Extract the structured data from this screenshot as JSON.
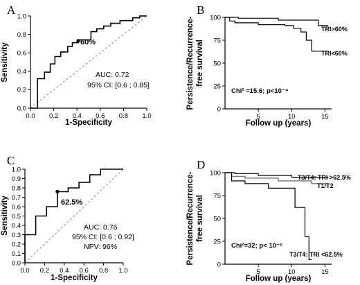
{
  "chart_data": [
    {
      "panel": "A",
      "type": "line",
      "xlabel": "1-Specificity",
      "ylabel": "Sensitivity",
      "xlim": [
        0,
        1
      ],
      "ylim": [
        0,
        1
      ],
      "xticks": [
        "0.0",
        "0.2",
        "0.4",
        "0.6",
        "0.8",
        "1.0"
      ],
      "yticks": [
        "0.0",
        "0.2",
        "0.4",
        "0.6",
        "0.8",
        "1.0"
      ],
      "series": [
        {
          "x": [
            0,
            0.06,
            0.06,
            0.12,
            0.12,
            0.17,
            0.17,
            0.21,
            0.21,
            0.26,
            0.26,
            0.32,
            0.32,
            0.36,
            0.36,
            0.41,
            0.41,
            0.52,
            0.52,
            0.57,
            0.57,
            0.63,
            0.63,
            0.69,
            0.69,
            0.77,
            0.77,
            0.88,
            0.88,
            0.94,
            0.94,
            1.0
          ],
          "y": [
            0,
            0,
            0.32,
            0.32,
            0.39,
            0.39,
            0.48,
            0.48,
            0.56,
            0.56,
            0.61,
            0.61,
            0.67,
            0.67,
            0.71,
            0.71,
            0.74,
            0.74,
            0.83,
            0.83,
            0.86,
            0.86,
            0.89,
            0.89,
            0.92,
            0.92,
            0.95,
            0.95,
            0.98,
            0.98,
            1.0,
            1.0
          ]
        }
      ],
      "reference_line": true,
      "cutoff_point": {
        "x": 0.41,
        "y": 0.73,
        "label": "60%"
      },
      "annotations": [
        "AUC: 0.72",
        "95% CI: [0.6 ; 0.85]"
      ]
    },
    {
      "panel": "B",
      "type": "line",
      "xlabel": "Follow up (years)",
      "ylabel": "Persistence/Recurrence-\nfree survival",
      "xlim": [
        0,
        16
      ],
      "ylim": [
        0,
        100
      ],
      "xticks": [
        "5",
        "10",
        "15"
      ],
      "yticks": [
        "0",
        "25",
        "50",
        "75",
        "100"
      ],
      "series": [
        {
          "name": "TRI>60%",
          "x": [
            0,
            2,
            2,
            8,
            8,
            14,
            14,
            15.5
          ],
          "y": [
            100,
            100,
            99,
            99,
            97,
            97,
            91,
            91
          ]
        },
        {
          "name": "TRI<60%",
          "x": [
            0,
            0.7,
            0.7,
            1.5,
            1.5,
            5,
            5,
            9,
            9,
            10.3,
            10.3,
            11.4,
            11.4,
            12.2,
            12.2,
            13,
            13,
            15.5
          ],
          "y": [
            100,
            100,
            96,
            96,
            94,
            94,
            92,
            92,
            91,
            91,
            88,
            88,
            84,
            84,
            75,
            75,
            63,
            63
          ]
        }
      ],
      "annotations": [
        "Chi² =15.6; p<10⁻⁴"
      ]
    },
    {
      "panel": "C",
      "type": "line",
      "xlabel": "1-Specificity",
      "ylabel": "Sensitivity",
      "xlim": [
        0,
        1
      ],
      "ylim": [
        0,
        1
      ],
      "xticks": [
        "0.0",
        "0.2",
        "0.4",
        "0.6",
        "0.8",
        "1.0"
      ],
      "yticks": [
        "0.0",
        "0.1",
        "0.2",
        "0.3",
        "0.4",
        "0.5",
        "0.6",
        "0.7",
        "0.8",
        "0.9",
        "1.0"
      ],
      "series": [
        {
          "x": [
            0,
            0.11,
            0.11,
            0.22,
            0.22,
            0.33,
            0.33,
            0.44,
            0.44,
            0.55,
            0.55,
            0.66,
            0.66,
            0.77,
            0.77,
            1.0
          ],
          "y": [
            0.3,
            0.3,
            0.5,
            0.5,
            0.6,
            0.6,
            0.76,
            0.76,
            0.8,
            0.8,
            0.86,
            0.86,
            0.94,
            0.94,
            1.0,
            1.0
          ]
        }
      ],
      "reference_line": true,
      "cutoff_point": {
        "x": 0.33,
        "y": 0.76,
        "label": "62.5%"
      },
      "annotations": [
        "AUC: 0.76",
        "95% CI: [0.6 ; 0.92]",
        "NPV: 96%"
      ]
    },
    {
      "panel": "D",
      "type": "line",
      "xlabel": "Follow up (years)",
      "ylabel": "Persistence/Recurrence-\nfree survival",
      "xlim": [
        0,
        16
      ],
      "ylim": [
        0,
        100
      ],
      "xticks": [
        "5",
        "10",
        "15"
      ],
      "yticks": [
        "0",
        "25",
        "50",
        "75",
        "100"
      ],
      "series": [
        {
          "name": "T3/T4: TRI >62.5%",
          "x": [
            0,
            1.5,
            1.5,
            5,
            5,
            10,
            10,
            15.5
          ],
          "y": [
            100,
            100,
            99,
            99,
            97,
            97,
            95,
            95
          ]
        },
        {
          "name": "T1/T2",
          "x": [
            0,
            1,
            1,
            3,
            3,
            8,
            8,
            13,
            13,
            15.5
          ],
          "y": [
            100,
            100,
            96,
            96,
            94,
            94,
            91,
            91,
            88,
            88
          ]
        },
        {
          "name": "T3/T4: TRI <62.5%",
          "x": [
            0,
            1,
            1,
            3,
            3,
            6.5,
            6.5,
            10.5,
            10.5,
            12,
            12,
            12.6,
            12.6,
            13
          ],
          "y": [
            100,
            100,
            91,
            91,
            88,
            88,
            83,
            83,
            62,
            62,
            30,
            30,
            5,
            5
          ]
        }
      ],
      "annotations": [
        "Chi²=32; p< 10⁻⁶"
      ]
    }
  ]
}
